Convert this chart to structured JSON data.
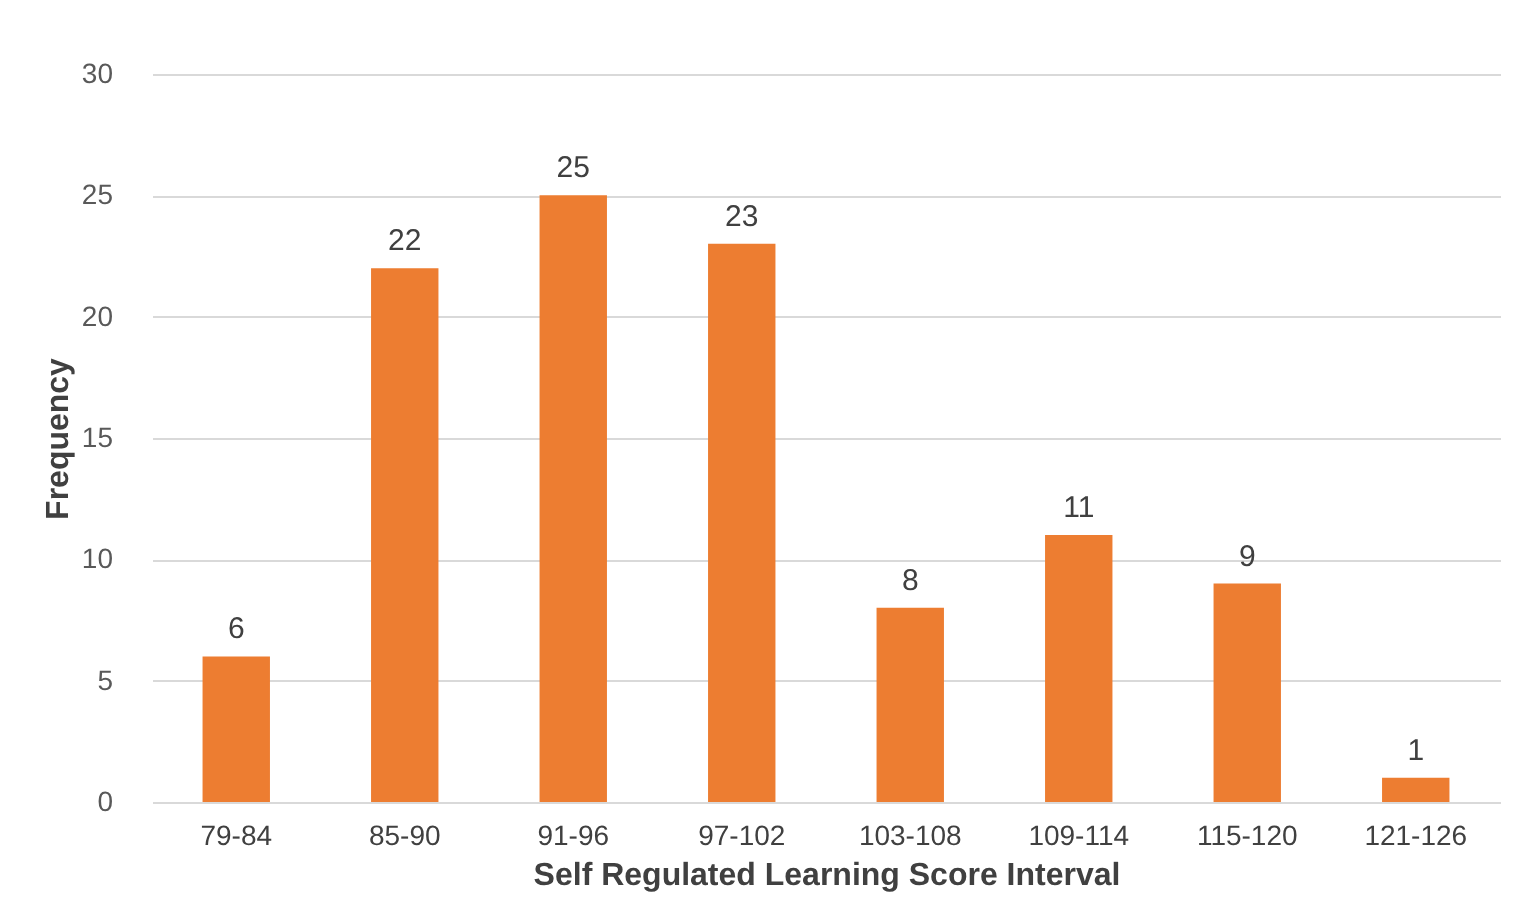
{
  "chart_data": {
    "type": "bar",
    "xlabel": "Self Regulated Learning Score Interval",
    "ylabel": "Frequency",
    "categories": [
      "79-84",
      "85-90",
      "91-96",
      "97-102",
      "103-108",
      "109-114",
      "115-120",
      "121-126"
    ],
    "values": [
      6,
      22,
      25,
      23,
      8,
      11,
      9,
      1
    ],
    "color": "#ed7d31",
    "ylim": [
      0,
      30
    ],
    "yticks": [
      0,
      5,
      10,
      15,
      20,
      25,
      30
    ],
    "grid": "y",
    "data_labels": true
  }
}
